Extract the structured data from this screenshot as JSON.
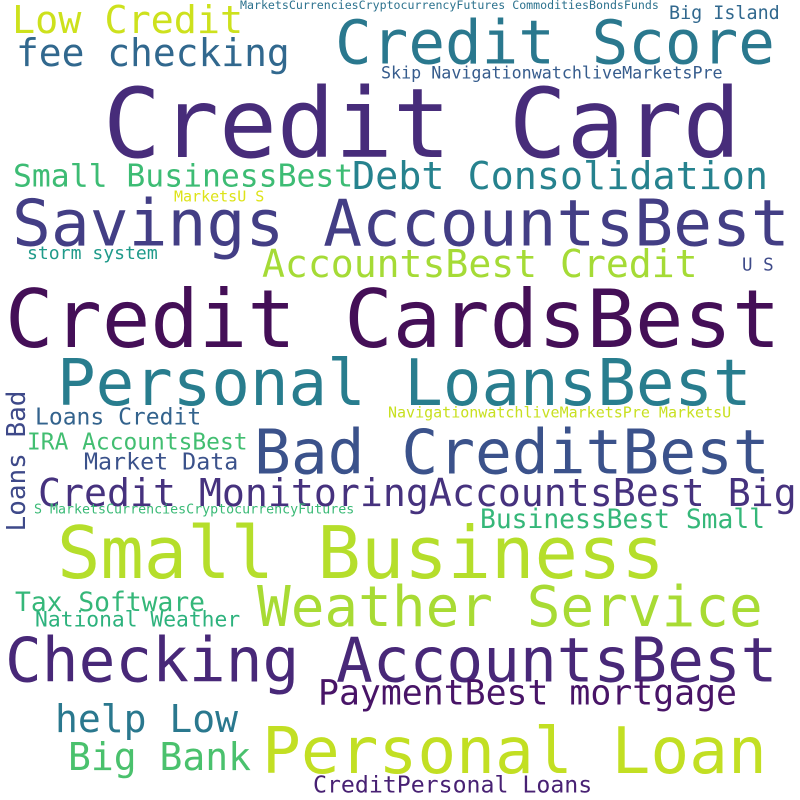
{
  "words": [
    {
      "text": "Credit Card",
      "color": "#472c7a"
    },
    {
      "text": "Credit CardsBest",
      "color": "#440f57"
    },
    {
      "text": "Credit Score",
      "color": "#2a788e"
    },
    {
      "text": "Savings AccountsBest",
      "color": "#433e85"
    },
    {
      "text": "Personal LoansBest",
      "color": "#287d8e"
    },
    {
      "text": "Bad CreditBest",
      "color": "#3b528b"
    },
    {
      "text": "Small Business",
      "color": "#b5de2b"
    },
    {
      "text": "Checking AccountsBest",
      "color": "#482878"
    },
    {
      "text": "Personal Loan",
      "color": "#c2df23"
    },
    {
      "text": "Weather Service",
      "color": "#a8db34"
    },
    {
      "text": "Debt Consolidation",
      "color": "#26828e"
    },
    {
      "text": "Credit MonitoringAccountsBest Big",
      "color": "#46327e"
    },
    {
      "text": "PaymentBest mortgage",
      "color": "#481467"
    },
    {
      "text": "Low Credit",
      "color": "#cde11d"
    },
    {
      "text": "fee checking",
      "color": "#31688e"
    },
    {
      "text": "AccountsBest Credit",
      "color": "#a5db36"
    },
    {
      "text": "Small BusinessBest",
      "color": "#3dbc74"
    },
    {
      "text": "help Low",
      "color": "#2a788e"
    },
    {
      "text": "Big Bank",
      "color": "#4ac16d"
    },
    {
      "text": "Loans Credit",
      "color": "#33638d"
    },
    {
      "text": "IRA AccountsBest",
      "color": "#42be71"
    },
    {
      "text": "Market Data",
      "color": "#3b528b"
    },
    {
      "text": "BusinessBest Small",
      "color": "#35b779"
    },
    {
      "text": "Tax Software",
      "color": "#35b779"
    },
    {
      "text": "National Weather",
      "color": "#2db27d"
    },
    {
      "text": "CreditPersonal Loans",
      "color": "#482173"
    },
    {
      "text": "Loans Bad",
      "color": "#3e4989"
    },
    {
      "text": "Skip NavigationwatchliveMarketsPre",
      "color": "#365c8d"
    },
    {
      "text": "Big Island",
      "color": "#31688e"
    },
    {
      "text": "MarketsCurrenciesCryptocurrencyFutures CommoditiesBondsFunds",
      "color": "#2c728e"
    },
    {
      "text": "storm system",
      "color": "#1f9a8a"
    },
    {
      "text": "U S",
      "color": "#3e4a89"
    },
    {
      "text": "MarketsU S",
      "color": "#dde318"
    },
    {
      "text": "NavigationwatchliveMarketsPre MarketsU",
      "color": "#c8e020"
    },
    {
      "text": "S MarketsCurrenciesCryptocurrencyFutures",
      "color": "#3aba76"
    }
  ]
}
